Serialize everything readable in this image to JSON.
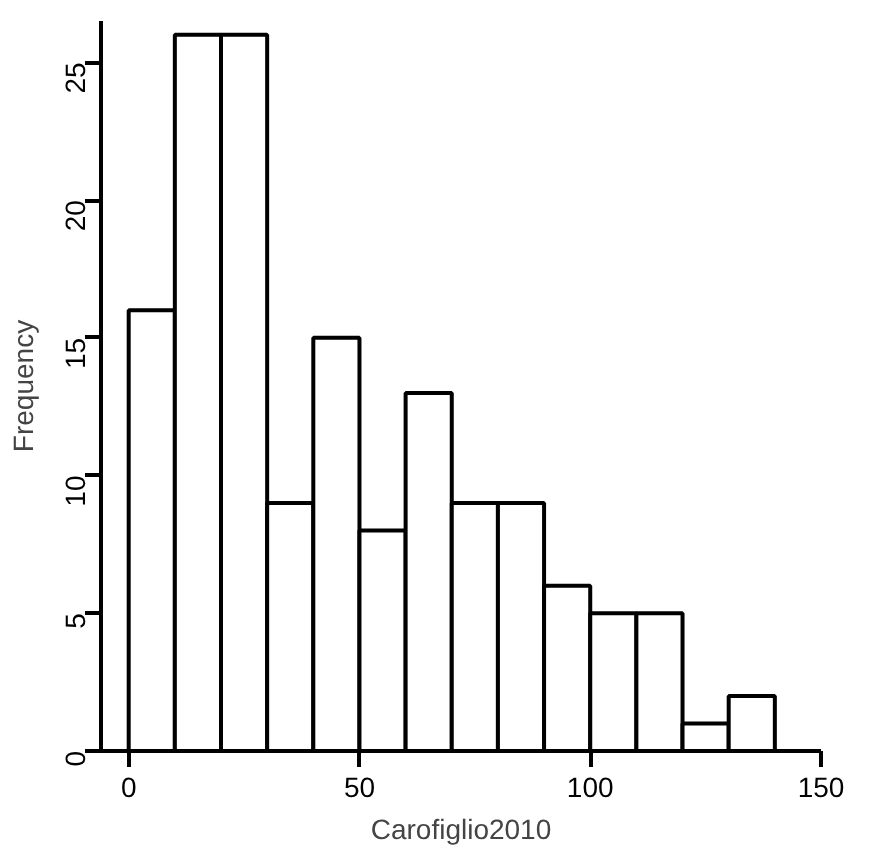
{
  "chart_data": {
    "type": "histogram",
    "xlabel": "Carofiglio2010",
    "ylabel": "Frequency",
    "bins": [
      0,
      10,
      20,
      30,
      40,
      50,
      60,
      70,
      80,
      90,
      100,
      110,
      120,
      130,
      140
    ],
    "values": [
      16,
      26,
      26,
      9,
      15,
      8,
      13,
      9,
      9,
      6,
      5,
      5,
      1,
      2
    ],
    "color": "#ffffff",
    "xlim": [
      -6,
      150
    ],
    "ylim": [
      0,
      26.5
    ],
    "xticks": [
      0,
      50,
      100,
      150
    ],
    "yticks": [
      0,
      5,
      10,
      15,
      20,
      25
    ],
    "grid": false
  }
}
